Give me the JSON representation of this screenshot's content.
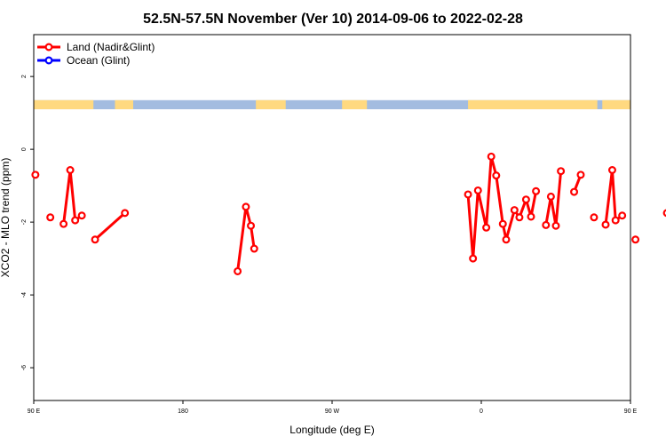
{
  "chart_data": {
    "type": "line",
    "title": "52.5N-57.5N November (Ver 10)   2014-09-06 to 2022-02-28",
    "xlabel": "Longitude (deg E)",
    "ylabel": "XCO2 - MLO trend (ppm)",
    "x_axis_note": "Longitude axis runs from 90 E eastward across the dateline to 180 (i.e. 90 E); x values below are in degrees of travel east from 90 E (0-360).",
    "xlim": [
      0,
      360
    ],
    "ylim": [
      -6.9,
      3.15
    ],
    "x_ticks": [
      {
        "value": 0,
        "label": "90 E"
      },
      {
        "value": 90,
        "label": "180"
      },
      {
        "value": 180,
        "label": "90 W"
      },
      {
        "value": 270,
        "label": "0"
      },
      {
        "value": 360,
        "label": "90 E"
      },
      {
        "value": 450,
        "label": "180"
      }
    ],
    "y_ticks": [
      {
        "value": 2,
        "label": "2"
      },
      {
        "value": 0,
        "label": "0"
      },
      {
        "value": -2,
        "label": "-2"
      },
      {
        "value": -4,
        "label": "-4"
      },
      {
        "value": -6,
        "label": "-6"
      }
    ],
    "grid": false,
    "legend_position": "top-left",
    "legend": [
      {
        "label": "Land (Nadir&Glint)",
        "color": "#ff0000"
      },
      {
        "label": "Ocean (Glint)",
        "color": "#0000ff"
      }
    ],
    "land_ocean_strip": {
      "y_range": [
        1.1,
        1.35
      ],
      "land_color": "#ffd980",
      "ocean_color": "#a3bce0",
      "land_intervals": [
        [
          0,
          36
        ],
        [
          49,
          60
        ],
        [
          134,
          152
        ],
        [
          186,
          201
        ],
        [
          262,
          340
        ],
        [
          343,
          360
        ]
      ]
    },
    "series": [
      {
        "name": "Land (Nadir&Glint)",
        "color": "#ff0000",
        "segments": [
          [
            [
              1,
              -0.7
            ]
          ],
          [
            [
              10,
              -1.87
            ]
          ],
          [
            [
              18,
              -2.05
            ],
            [
              22,
              -0.57
            ],
            [
              25,
              -1.95
            ],
            [
              29,
              -1.82
            ]
          ],
          [
            [
              37,
              -2.48
            ],
            [
              55,
              -1.75
            ]
          ],
          [
            [
              123,
              -3.35
            ],
            [
              128,
              -1.58
            ],
            [
              131,
              -2.1
            ],
            [
              133,
              -2.73
            ]
          ],
          [
            [
              262,
              -1.24
            ],
            [
              265,
              -3.0
            ],
            [
              268,
              -1.13
            ],
            [
              273,
              -2.15
            ],
            [
              276,
              -0.2
            ],
            [
              279,
              -0.72
            ],
            [
              283,
              -2.05
            ],
            [
              285,
              -2.48
            ],
            [
              290,
              -1.67
            ],
            [
              293,
              -1.87
            ],
            [
              297,
              -1.38
            ],
            [
              300,
              -1.85
            ],
            [
              303,
              -1.15
            ]
          ],
          [
            [
              309,
              -2.08
            ],
            [
              312,
              -1.3
            ],
            [
              315,
              -2.1
            ],
            [
              318,
              -0.6
            ]
          ],
          [
            [
              326,
              -1.17
            ],
            [
              330,
              -0.7
            ]
          ],
          [
            [
              338,
              -1.87
            ]
          ],
          [
            [
              345,
              -2.07
            ],
            [
              349,
              -0.57
            ],
            [
              351,
              -1.95
            ],
            [
              355,
              -1.82
            ]
          ],
          [
            [
              363,
              -2.48
            ]
          ],
          [
            [
              382,
              -1.75
            ]
          ]
        ]
      }
    ]
  }
}
